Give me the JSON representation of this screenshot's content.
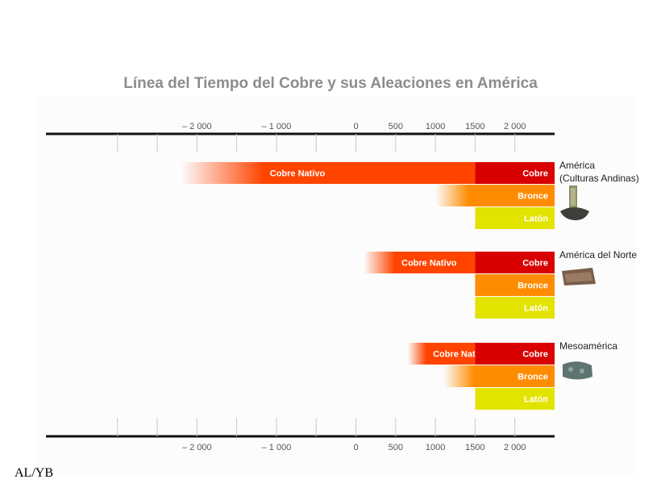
{
  "chart_data": {
    "type": "bar",
    "title": "Línea del Tiempo del Cobre  y sus Aleaciones en América",
    "axis": {
      "range": [
        -3900,
        2500
      ],
      "ticks": [
        -2000,
        -1000,
        0,
        500,
        1000,
        1500,
        2000
      ],
      "tick_labels": [
        "– 2 000",
        "– 1 000",
        "0",
        "500",
        "1000",
        "1500",
        "2 000"
      ],
      "minor_ticks": [
        -3000,
        -2500,
        -2000,
        -1500,
        -1000,
        -500,
        0,
        500,
        1000,
        1500,
        2000
      ]
    },
    "colors": {
      "cobre_nativo": "#ff4400",
      "cobre": "#d80000",
      "bronce": "#ff8c00",
      "laton": "#e3e300",
      "fade": "#ffffff"
    },
    "regions": [
      {
        "name": "América\n(Culturas Andinas)",
        "bars": [
          {
            "series": "cobre_nativo",
            "label": "Cobre Nativo",
            "start": -2200,
            "end": 1500,
            "fade": true
          },
          {
            "series": "cobre",
            "label": "Cobre",
            "start": 1500,
            "end": 2500
          },
          {
            "series": "bronce",
            "label": "Bronce",
            "start": 1000,
            "end": 2500,
            "fade": true
          },
          {
            "series": "laton",
            "label": "Latón",
            "start": 1500,
            "end": 2500
          }
        ]
      },
      {
        "name": "América del Norte",
        "bars": [
          {
            "series": "cobre_nativo",
            "label": "Cobre Nativo",
            "start": 100,
            "end": 1500,
            "fade": true
          },
          {
            "series": "cobre",
            "label": "Cobre",
            "start": 1500,
            "end": 2500
          },
          {
            "series": "bronce",
            "label": "Bronce",
            "start": 1500,
            "end": 2500
          },
          {
            "series": "laton",
            "label": "Latón",
            "start": 1500,
            "end": 2500
          }
        ]
      },
      {
        "name": "Mesoamérica",
        "bars": [
          {
            "series": "cobre_nativo",
            "label": "Cobre Nativo",
            "start": 650,
            "end": 1500,
            "fade": true
          },
          {
            "series": "cobre",
            "label": "Cobre",
            "start": 1500,
            "end": 2500
          },
          {
            "series": "bronce",
            "label": "Bronce",
            "start": 1100,
            "end": 2500,
            "fade": true
          },
          {
            "series": "laton",
            "label": "Latón",
            "start": 1500,
            "end": 2500
          }
        ]
      }
    ]
  },
  "footer": {
    "credit": "AL/YB"
  }
}
